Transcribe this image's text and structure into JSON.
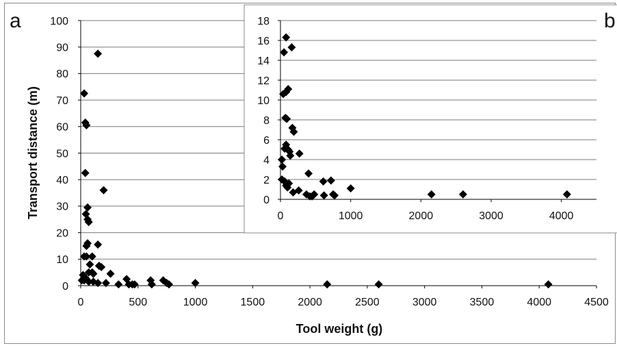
{
  "chart_data": [
    {
      "type": "scatter",
      "panel_label": "a",
      "xlabel": "Tool weight (g)",
      "ylabel": "Transport distance (m)",
      "xlim": [
        0,
        4500
      ],
      "ylim": [
        0,
        100
      ],
      "xticks": [
        "0",
        "500",
        "1000",
        "1500",
        "2000",
        "2500",
        "3000",
        "3500",
        "4000",
        "4500"
      ],
      "yticks": [
        "0",
        "10",
        "20",
        "30",
        "40",
        "50",
        "60",
        "70",
        "80",
        "90",
        "100"
      ],
      "grid": "horizontal",
      "marker": "diamond",
      "marker_color": "#000000",
      "points": [
        [
          30,
          72.5
        ],
        [
          40,
          61.5
        ],
        [
          50,
          60.5
        ],
        [
          150,
          87.5
        ],
        [
          40,
          42.5
        ],
        [
          200,
          36
        ],
        [
          60,
          29.5
        ],
        [
          45,
          27
        ],
        [
          60,
          25
        ],
        [
          70,
          24
        ],
        [
          60,
          16
        ],
        [
          150,
          15.5
        ],
        [
          50,
          15
        ],
        [
          30,
          11
        ],
        [
          50,
          11
        ],
        [
          100,
          11
        ],
        [
          80,
          8
        ],
        [
          160,
          7.5
        ],
        [
          180,
          7
        ],
        [
          20,
          4
        ],
        [
          40,
          3
        ],
        [
          70,
          5
        ],
        [
          100,
          5
        ],
        [
          110,
          4.5
        ],
        [
          260,
          4.5
        ],
        [
          10,
          2
        ],
        [
          30,
          2
        ],
        [
          50,
          2.5
        ],
        [
          70,
          1.5
        ],
        [
          110,
          1.5
        ],
        [
          150,
          1
        ],
        [
          220,
          1
        ],
        [
          330,
          0.5
        ],
        [
          400,
          2.5
        ],
        [
          420,
          0.5
        ],
        [
          450,
          0.5
        ],
        [
          470,
          0.5
        ],
        [
          610,
          2
        ],
        [
          620,
          0.5
        ],
        [
          720,
          2
        ],
        [
          750,
          1
        ],
        [
          770,
          0.5
        ],
        [
          1000,
          1
        ],
        [
          2150,
          0.5
        ],
        [
          2600,
          0.5
        ],
        [
          4080,
          0.5
        ]
      ]
    },
    {
      "type": "scatter",
      "panel_label": "b",
      "xlim": [
        0,
        4500
      ],
      "ylim": [
        0,
        18
      ],
      "xticks": [
        "0",
        "1000",
        "2000",
        "3000",
        "4000"
      ],
      "yticks": [
        "0",
        "2",
        "4",
        "6",
        "8",
        "10",
        "12",
        "14",
        "16",
        "18"
      ],
      "grid": "horizontal",
      "marker": "diamond",
      "marker_color": "#000000",
      "points": [
        [
          80,
          16.3
        ],
        [
          50,
          14.8
        ],
        [
          160,
          15.3
        ],
        [
          40,
          10.6
        ],
        [
          80,
          10.8
        ],
        [
          110,
          11.1
        ],
        [
          70,
          8.2
        ],
        [
          90,
          8.1
        ],
        [
          170,
          7.2
        ],
        [
          190,
          6.8
        ],
        [
          80,
          5.5
        ],
        [
          60,
          5.1
        ],
        [
          110,
          5
        ],
        [
          130,
          4.8
        ],
        [
          140,
          4.4
        ],
        [
          270,
          4.6
        ],
        [
          20,
          4
        ],
        [
          30,
          3.3
        ],
        [
          20,
          2
        ],
        [
          60,
          1.8
        ],
        [
          80,
          1.4
        ],
        [
          100,
          1.2
        ],
        [
          120,
          1.6
        ],
        [
          180,
          0.7
        ],
        [
          260,
          0.9
        ],
        [
          400,
          2.6
        ],
        [
          370,
          0.5
        ],
        [
          420,
          0.3
        ],
        [
          450,
          0.3
        ],
        [
          480,
          0.5
        ],
        [
          610,
          1.8
        ],
        [
          620,
          0.4
        ],
        [
          720,
          1.9
        ],
        [
          750,
          0.5
        ],
        [
          770,
          0.4
        ],
        [
          1000,
          1.1
        ],
        [
          2150,
          0.5
        ],
        [
          2600,
          0.5
        ],
        [
          4080,
          0.5
        ]
      ]
    }
  ]
}
